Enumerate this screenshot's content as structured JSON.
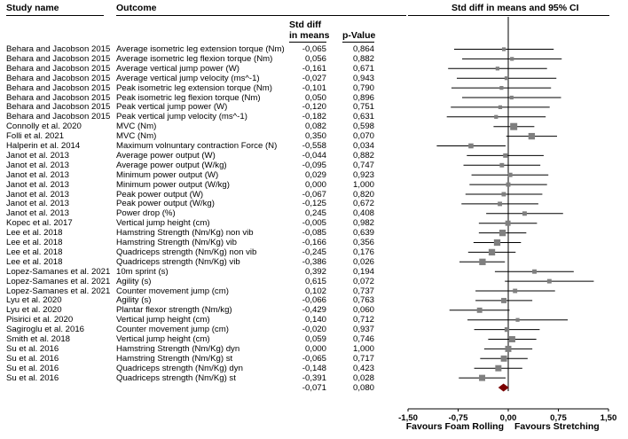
{
  "headers": {
    "study": "Study name",
    "outcome": "Outcome",
    "std_diff_line1": "Std diff",
    "std_diff_line2": "in means",
    "p_value": "p-Value",
    "ci_title": "Std diff in means and 95% CI"
  },
  "chart_data": {
    "type": "forest",
    "title": "Std diff in means and 95% CI",
    "xlim": [
      -1.5,
      1.5
    ],
    "x_ticks": [
      -1.5,
      -0.75,
      0.0,
      0.75,
      1.5
    ],
    "x_tick_labels": [
      "-1,50",
      "-0,75",
      "0,00",
      "0,75",
      "1,50"
    ],
    "xlabel_left": "Favours Foam Rolling",
    "xlabel_right": "Favours Stretching",
    "rows": [
      {
        "study": "Behara and Jacobson 2015",
        "outcome": "Average isometric leg extension torque (Nm)",
        "smd": -0.065,
        "smd_label": "-0,065",
        "p": "0,864",
        "ci": [
          -0.81,
          0.68
        ],
        "weight": 0.6
      },
      {
        "study": "Behara and Jacobson 2015",
        "outcome": "Average isometric leg flexion torque (Nm)",
        "smd": 0.056,
        "smd_label": "0,056",
        "p": "0,882",
        "ci": [
          -0.69,
          0.8
        ],
        "weight": 0.6
      },
      {
        "study": "Behara and Jacobson 2015",
        "outcome": "Average vertical jump power (W)",
        "smd": -0.161,
        "smd_label": "-0,161",
        "p": "0,671",
        "ci": [
          -0.9,
          0.58
        ],
        "weight": 0.6
      },
      {
        "study": "Behara and Jacobson 2015",
        "outcome": "Average vertical jump velocity (ms^-1)",
        "smd": -0.027,
        "smd_label": "-0,027",
        "p": "0,943",
        "ci": [
          -0.77,
          0.72
        ],
        "weight": 0.6
      },
      {
        "study": "Behara and Jacobson 2015",
        "outcome": "Peak isometric leg extension torque (Nm)",
        "smd": -0.101,
        "smd_label": "-0,101",
        "p": "0,790",
        "ci": [
          -0.85,
          0.64
        ],
        "weight": 0.6
      },
      {
        "study": "Behara and Jacobson 2015",
        "outcome": "Peak isometric leg flexion torque (Nm)",
        "smd": 0.05,
        "smd_label": "0,050",
        "p": "0,896",
        "ci": [
          -0.69,
          0.79
        ],
        "weight": 0.6
      },
      {
        "study": "Behara and Jacobson 2015",
        "outcome": "Peak vertical jump power (W)",
        "smd": -0.12,
        "smd_label": "-0,120",
        "p": "0,751",
        "ci": [
          -0.86,
          0.62
        ],
        "weight": 0.6
      },
      {
        "study": "Behara and Jacobson 2015",
        "outcome": "Peak vertical jump velocity (ms^-1)",
        "smd": -0.182,
        "smd_label": "-0,182",
        "p": "0,631",
        "ci": [
          -0.92,
          0.56
        ],
        "weight": 0.6
      },
      {
        "study": "Connolly et al. 2020",
        "outcome": "MVC (Nm)",
        "smd": 0.082,
        "smd_label": "0,082",
        "p": "0,598",
        "ci": [
          -0.22,
          0.39
        ],
        "weight": 1.7
      },
      {
        "study": "Folli et al. 2021",
        "outcome": "MVC (Nm)",
        "smd": 0.35,
        "smd_label": "0,350",
        "p": "0,070",
        "ci": [
          -0.03,
          0.73
        ],
        "weight": 1.5
      },
      {
        "study": "Halperin et al. 2014",
        "outcome": "Maximum volnuntary contraction Force (N)",
        "smd": -0.558,
        "smd_label": "-0,558",
        "p": "0,034",
        "ci": [
          -1.07,
          -0.04
        ],
        "weight": 1.0
      },
      {
        "study": "Janot et al. 2013",
        "outcome": "Average power output (W)",
        "smd": -0.044,
        "smd_label": "-0,044",
        "p": "0,882",
        "ci": [
          -0.62,
          0.53
        ],
        "weight": 0.8
      },
      {
        "study": "Janot et al. 2013",
        "outcome": "Average power output (W/kg)",
        "smd": -0.095,
        "smd_label": "-0,095",
        "p": "0,747",
        "ci": [
          -0.67,
          0.48
        ],
        "weight": 0.8
      },
      {
        "study": "Janot et al. 2013",
        "outcome": "Minimum power output (W)",
        "smd": 0.029,
        "smd_label": "0,029",
        "p": "0,923",
        "ci": [
          -0.55,
          0.6
        ],
        "weight": 0.8
      },
      {
        "study": "Janot et al. 2013",
        "outcome": "Minimum power output (W/kg)",
        "smd": 0.0,
        "smd_label": "0,000",
        "p": "1,000",
        "ci": [
          -0.58,
          0.58
        ],
        "weight": 0.8
      },
      {
        "study": "Janot et al. 2013",
        "outcome": "Peak power output (W)",
        "smd": -0.067,
        "smd_label": "-0,067",
        "p": "0,820",
        "ci": [
          -0.64,
          0.51
        ],
        "weight": 0.8
      },
      {
        "study": "Janot et al. 2013",
        "outcome": "Peak power output (W/kg)",
        "smd": -0.125,
        "smd_label": "-0,125",
        "p": "0,672",
        "ci": [
          -0.7,
          0.45
        ],
        "weight": 0.8
      },
      {
        "study": "Janot et al. 2013",
        "outcome": "Power drop (%)",
        "smd": 0.245,
        "smd_label": "0,245",
        "p": "0,408",
        "ci": [
          -0.33,
          0.82
        ],
        "weight": 0.8
      },
      {
        "study": "Kopec et al. 2017",
        "outcome": "Vertical jump height (cm)",
        "smd": -0.005,
        "smd_label": "-0,005",
        "p": "0,982",
        "ci": [
          -0.44,
          0.43
        ],
        "weight": 1.1
      },
      {
        "study": "Lee et al. 2018",
        "outcome": "Hamstring Strength (Nm/Kg) non vib",
        "smd": -0.085,
        "smd_label": "-0,085",
        "p": "0,639",
        "ci": [
          -0.44,
          0.27
        ],
        "weight": 1.5
      },
      {
        "study": "Lee et al. 2018",
        "outcome": "Hamstring Strength (Nm/Kg) vib",
        "smd": -0.166,
        "smd_label": "-0,166",
        "p": "0,356",
        "ci": [
          -0.52,
          0.19
        ],
        "weight": 1.5
      },
      {
        "study": "Lee et al. 2018",
        "outcome": "Quadriceps strength (Nm/Kg) non vib",
        "smd": -0.245,
        "smd_label": "-0,245",
        "p": "0,176",
        "ci": [
          -0.6,
          0.11
        ],
        "weight": 1.5
      },
      {
        "study": "Lee et al. 2018",
        "outcome": "Quadriceps strength (Nm/Kg) vib",
        "smd": -0.386,
        "smd_label": "-0,386",
        "p": "0,026",
        "ci": [
          -0.73,
          -0.05
        ],
        "weight": 1.5
      },
      {
        "study": "Lopez-Samanes et al. 2021",
        "outcome": "10m sprint (s)",
        "smd": 0.392,
        "smd_label": "0,392",
        "p": "0,194",
        "ci": [
          -0.2,
          0.98
        ],
        "weight": 0.8
      },
      {
        "study": "Lopez-Samanes et al. 2021",
        "outcome": "Agility (s)",
        "smd": 0.615,
        "smd_label": "0,615",
        "p": "0,072",
        "ci": [
          -0.05,
          1.28
        ],
        "weight": 0.8
      },
      {
        "study": "Lopez-Samanes et al. 2021",
        "outcome": "Counter movement jump (cm)",
        "smd": 0.102,
        "smd_label": "0,102",
        "p": "0,737",
        "ci": [
          -0.49,
          0.7
        ],
        "weight": 0.8
      },
      {
        "study": "Lyu et al. 2020",
        "outcome": "Agility (s)",
        "smd": -0.066,
        "smd_label": "-0,066",
        "p": "0,763",
        "ci": [
          -0.49,
          0.36
        ],
        "weight": 1.1
      },
      {
        "study": "Lyu et al. 2020",
        "outcome": "Plantar flexor strength (Nm/kg)",
        "smd": -0.429,
        "smd_label": "-0,429",
        "p": "0,060",
        "ci": [
          -0.88,
          0.02
        ],
        "weight": 1.1
      },
      {
        "study": "Pisirici et al. 2020",
        "outcome": "Vertical jump height (cm)",
        "smd": 0.14,
        "smd_label": "0,140",
        "p": "0,712",
        "ci": [
          -0.61,
          0.89
        ],
        "weight": 0.6
      },
      {
        "study": "Sagiroglu et al. 2016",
        "outcome": "Counter movement jump (cm)",
        "smd": -0.02,
        "smd_label": "-0,020",
        "p": "0,937",
        "ci": [
          -0.51,
          0.47
        ],
        "weight": 0.9
      },
      {
        "study": "Smith et al. 2018",
        "outcome": "Vertical jump height (cm)",
        "smd": 0.059,
        "smd_label": "0,059",
        "p": "0,746",
        "ci": [
          -0.3,
          0.42
        ],
        "weight": 1.4
      },
      {
        "study": "Su et al. 2016",
        "outcome": "Hamstring Strength (Nm/Kg) dyn",
        "smd": 0.0,
        "smd_label": "0,000",
        "p": "1,000",
        "ci": [
          -0.36,
          0.36
        ],
        "weight": 1.4
      },
      {
        "study": "Su et al. 2016",
        "outcome": "Hamstring Strength (Nm/Kg) st",
        "smd": -0.065,
        "smd_label": "-0,065",
        "p": "0,717",
        "ci": [
          -0.42,
          0.29
        ],
        "weight": 1.4
      },
      {
        "study": "Su et al. 2016",
        "outcome": "Quadriceps strength (Nm/Kg) dyn",
        "smd": -0.148,
        "smd_label": "-0,148",
        "p": "0,423",
        "ci": [
          -0.51,
          0.21
        ],
        "weight": 1.4
      },
      {
        "study": "Su et al. 2016",
        "outcome": "Quadriceps strength (Nm/Kg) st",
        "smd": -0.391,
        "smd_label": "-0,391",
        "p": "0,028",
        "ci": [
          -0.74,
          -0.04
        ],
        "weight": 1.4
      }
    ],
    "summary": {
      "smd": -0.071,
      "smd_label": "-0,071",
      "p": "0,080",
      "ci": [
        -0.15,
        0.01
      ]
    }
  },
  "colors": {
    "square": "#7f7f7f",
    "line": "#000000",
    "diamond": "#7a0000"
  }
}
